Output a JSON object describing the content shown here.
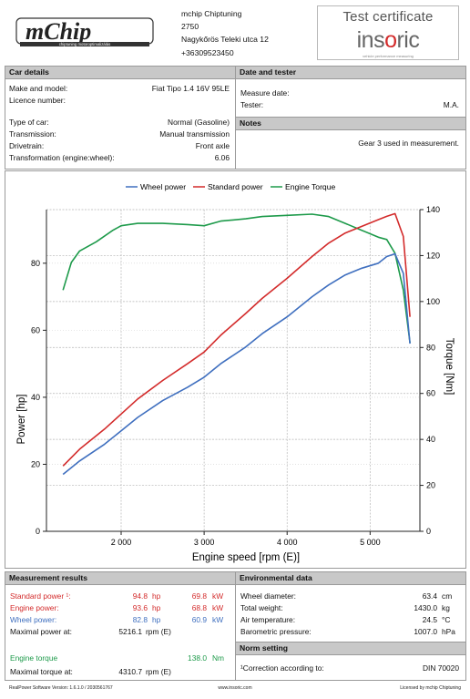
{
  "header": {
    "logo_text": "mChip",
    "logo_subtext": "chiptuning motoroptimalizálás",
    "company": {
      "name": "mchip Chiptuning",
      "zip": "2750",
      "address": "Nagykőrös Teleki utca 12",
      "phone": "+36309523450"
    },
    "certificate": {
      "title": "Test certificate",
      "brand_pre": "ins",
      "brand_oo": "o",
      "brand_post": "ric",
      "tagline": "vehicle performance measuring"
    }
  },
  "car_details": {
    "heading": "Car details",
    "rows": [
      {
        "label": "Make and model:",
        "value": "Fiat Tipo 1.4 16V 95LE"
      },
      {
        "label": "Licence number:",
        "value": ""
      },
      {
        "label": "Type of car:",
        "value": "Normal (Gasoline)"
      },
      {
        "label": "Transmission:",
        "value": "Manual transmission"
      },
      {
        "label": "Drivetrain:",
        "value": "Front axle"
      },
      {
        "label": "Transformation (engine:wheel):",
        "value": "6.06"
      }
    ]
  },
  "date_tester": {
    "heading": "Date and tester",
    "measure_date_label": "Measure date:",
    "measure_date_value": "",
    "tester_label": "Tester:",
    "tester_value": "M.A."
  },
  "notes": {
    "heading": "Notes",
    "text": "Gear 3 used in measurement."
  },
  "chart_data": {
    "type": "line",
    "xlabel": "Engine speed [rpm (E)]",
    "ylabel": "Power [hp]",
    "y2label": "Torque [Nm]",
    "xlim": [
      1100,
      5600
    ],
    "ylim": [
      0,
      96
    ],
    "y2lim": [
      0,
      140
    ],
    "x_ticks": [
      2000,
      3000,
      4000,
      5000
    ],
    "x_tick_labels": [
      "2 000",
      "3 000",
      "4 000",
      "5 000"
    ],
    "y_ticks": [
      0,
      20,
      40,
      60,
      80
    ],
    "y2_ticks": [
      0,
      20,
      40,
      60,
      80,
      100,
      120,
      140
    ],
    "legend_position": "top",
    "series": [
      {
        "name": "Wheel power",
        "axis": "left",
        "color": "#3f6fbf",
        "x": [
          1300,
          1500,
          1800,
          2000,
          2200,
          2500,
          2800,
          3000,
          3200,
          3500,
          3700,
          4000,
          4300,
          4500,
          4700,
          4900,
          5100,
          5200,
          5300,
          5400,
          5480
        ],
        "y": [
          17,
          21,
          26,
          30,
          34,
          39,
          43,
          46,
          50,
          55,
          59,
          64,
          70,
          73.5,
          76.5,
          78.5,
          80,
          82,
          82.8,
          77,
          56
        ]
      },
      {
        "name": "Standard power",
        "axis": "left",
        "color": "#d32b2b",
        "x": [
          1300,
          1500,
          1800,
          2000,
          2200,
          2500,
          2800,
          3000,
          3200,
          3500,
          3700,
          4000,
          4300,
          4500,
          4700,
          4900,
          5100,
          5200,
          5300,
          5400,
          5480
        ],
        "y": [
          19.5,
          24.5,
          30.5,
          35,
          39.5,
          45,
          50,
          53.5,
          58.5,
          65,
          69.5,
          75.5,
          82,
          86,
          89,
          91,
          93,
          94,
          94.8,
          88,
          64
        ]
      },
      {
        "name": "Engine Torque",
        "axis": "right",
        "color": "#1d9a4a",
        "x": [
          1300,
          1400,
          1500,
          1700,
          1900,
          2000,
          2200,
          2500,
          2800,
          3000,
          3200,
          3500,
          3700,
          4000,
          4300,
          4500,
          4700,
          4900,
          5100,
          5200,
          5300,
          5400,
          5480
        ],
        "y": [
          105,
          117,
          122,
          126,
          131,
          133,
          134,
          134,
          133.5,
          133,
          135,
          136,
          137,
          137.5,
          138,
          137,
          134,
          131,
          128,
          127,
          121,
          105,
          82
        ]
      }
    ]
  },
  "measurement_results": {
    "heading": "Measurement results",
    "rows": [
      {
        "label": "Standard power ¹:",
        "hp": "94.8",
        "hp_unit": "hp",
        "kw": "69.8",
        "kw_unit": "kW",
        "color": "red"
      },
      {
        "label": "Engine power:",
        "hp": "93.6",
        "hp_unit": "hp",
        "kw": "68.8",
        "kw_unit": "kW",
        "color": "red"
      },
      {
        "label": "Wheel power:",
        "hp": "82.8",
        "hp_unit": "hp",
        "kw": "60.9",
        "kw_unit": "kW",
        "color": "blue"
      }
    ],
    "max_power_label": "Maximal power at:",
    "max_power_value": "5216.1",
    "max_power_unit": "rpm (E)",
    "torque_label": "Engine torque",
    "torque_value": "138.0",
    "torque_unit": "Nm",
    "max_torque_label": "Maximal torque at:",
    "max_torque_value": "4310.7",
    "max_torque_unit": "rpm (E)"
  },
  "environment": {
    "heading": "Environmental data",
    "rows": [
      {
        "label": "Wheel diameter:",
        "value": "63.4",
        "unit": "cm"
      },
      {
        "label": "Total weight:",
        "value": "1430.0",
        "unit": "kg"
      },
      {
        "label": "Air temperature:",
        "value": "24.5",
        "unit": "°C"
      },
      {
        "label": "Barometric pressure:",
        "value": "1007.0",
        "unit": "hPa"
      }
    ]
  },
  "norm_setting": {
    "heading": "Norm setting",
    "label": "¹Correction according to:",
    "value": "DIN 70020"
  },
  "footer": {
    "left": "RealPower Software Version: 1.6.1.0 / 2030561767",
    "center": "www.insoric.com",
    "right": "Licensed by mchip Chiptuning"
  }
}
